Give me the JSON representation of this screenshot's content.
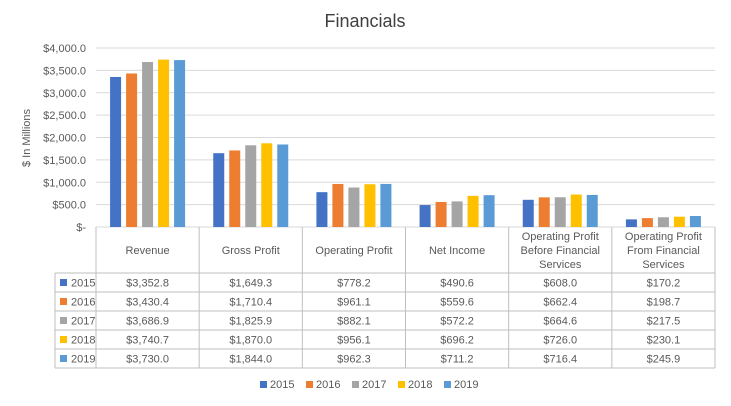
{
  "chart_data": {
    "type": "bar",
    "title": "Financials",
    "ylabel": "$ In Millions",
    "xlabel": "",
    "ylim": [
      0,
      4000
    ],
    "yticks": [
      {
        "value": 0,
        "label": "$-"
      },
      {
        "value": 500,
        "label": "$500.0"
      },
      {
        "value": 1000,
        "label": "$1,000.0"
      },
      {
        "value": 1500,
        "label": "$1,500.0"
      },
      {
        "value": 2000,
        "label": "$2,000.0"
      },
      {
        "value": 2500,
        "label": "$2,500.0"
      },
      {
        "value": 3000,
        "label": "$3,000.0"
      },
      {
        "value": 3500,
        "label": "$3,500.0"
      },
      {
        "value": 4000,
        "label": "$4,000.0"
      }
    ],
    "grid": true,
    "legend_position": "bottom",
    "categories": [
      "Revenue",
      "Gross Profit",
      "Operating Profit",
      "Net Income",
      "Operating Profit Before Financial Services",
      "Operating Profit From Financial Services"
    ],
    "series": [
      {
        "name": "2015",
        "color": "#4472c4",
        "values": [
          3352.8,
          1649.3,
          778.2,
          490.6,
          608.0,
          170.2
        ],
        "labels": [
          "$3,352.8",
          "$1,649.3",
          "$778.2",
          "$490.6",
          "$608.0",
          "$170.2"
        ]
      },
      {
        "name": "2016",
        "color": "#ed7d31",
        "values": [
          3430.4,
          1710.4,
          961.1,
          559.6,
          662.4,
          198.7
        ],
        "labels": [
          "$3,430.4",
          "$1,710.4",
          "$961.1",
          "$559.6",
          "$662.4",
          "$198.7"
        ]
      },
      {
        "name": "2017",
        "color": "#a5a5a5",
        "values": [
          3686.9,
          1825.9,
          882.1,
          572.2,
          664.6,
          217.5
        ],
        "labels": [
          "$3,686.9",
          "$1,825.9",
          "$882.1",
          "$572.2",
          "$664.6",
          "$217.5"
        ]
      },
      {
        "name": "2018",
        "color": "#ffc000",
        "values": [
          3740.7,
          1870.0,
          956.1,
          696.2,
          726.0,
          230.1
        ],
        "labels": [
          "$3,740.7",
          "$1,870.0",
          "$956.1",
          "$696.2",
          "$726.0",
          "$230.1"
        ]
      },
      {
        "name": "2019",
        "color": "#5b9bd5",
        "values": [
          3730.0,
          1844.0,
          962.3,
          711.2,
          716.4,
          245.9
        ],
        "labels": [
          "$3,730.0",
          "$1,844.0",
          "$962.3",
          "$711.2",
          "$716.4",
          "$245.9"
        ]
      }
    ]
  }
}
